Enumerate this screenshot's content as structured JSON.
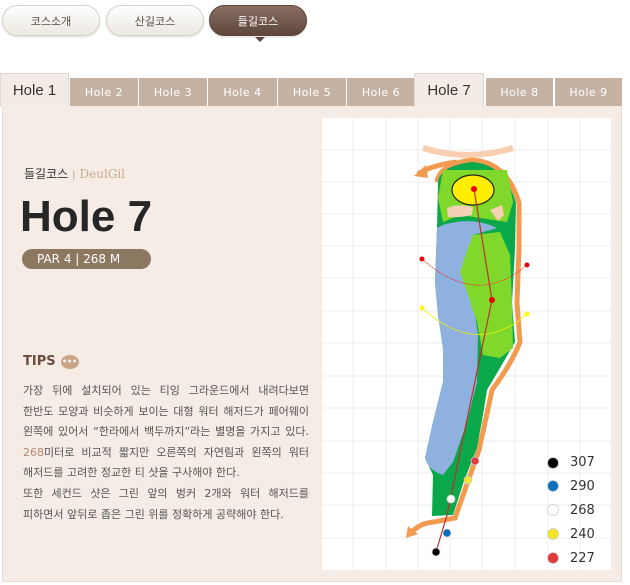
{
  "course_buttons": [
    {
      "label": "코스소개",
      "active": false
    },
    {
      "label": "산길코스",
      "active": false
    },
    {
      "label": "들길코스",
      "active": true
    }
  ],
  "tabs": [
    {
      "label": "Hole 1"
    },
    {
      "label": "Hole 2"
    },
    {
      "label": "Hole 3"
    },
    {
      "label": "Hole 4"
    },
    {
      "label": "Hole 5"
    },
    {
      "label": "Hole 6"
    },
    {
      "label": "Hole 7",
      "active": true
    },
    {
      "label": "Hole 8"
    },
    {
      "label": "Hole 9"
    }
  ],
  "hole": {
    "course_kr": "들길코스",
    "separator": "|",
    "course_en": "DeulGil",
    "title": "Hole 7",
    "info": "PAR 4 | 268 M"
  },
  "tips": {
    "heading": "TIPS",
    "icon": "speech-bubble-icon",
    "lines": [
      "가장 뒤에 설치되어 있는 티잉 그라운드에서 내려다보면",
      "한반도 모양과 비슷하게 보이는 대형 워터 해저드가 페어웨이",
      "왼쪽에 있어서 “한라에서 백두까지”라는 별명을 가지고 있다."
    ],
    "line4_num": "268",
    "line4_rest": "미터로 비교적 짧지만 오른쪽의 자연림과 왼쪽의 워터",
    "lines2": [
      "해저드를 고려한 정교한 티 샷을 구사해야 한다.",
      "또한 세컨드 샷은 그린 앞의 벙커 2개와 워터 해저드를",
      "피하면서 앞뒤로 좁은 그린 위를 정확하게 공략해야 한다."
    ]
  },
  "legend": [
    {
      "color": "#000000",
      "label": "307"
    },
    {
      "color": "#0a6fbf",
      "label": "290"
    },
    {
      "color": "#ffffff",
      "label": "268"
    },
    {
      "color": "#f5e52a",
      "label": "240"
    },
    {
      "color": "#e03a3e",
      "label": "227"
    }
  ],
  "colors": {
    "accent": "#5e463c",
    "tab_inactive": "#c5b2a3",
    "pill": "#8c7760",
    "water": "#8eb1e0",
    "rough": "#0aa84a",
    "fairway": "#80d82a",
    "green": "#ffee00",
    "border": "#f29a50"
  }
}
